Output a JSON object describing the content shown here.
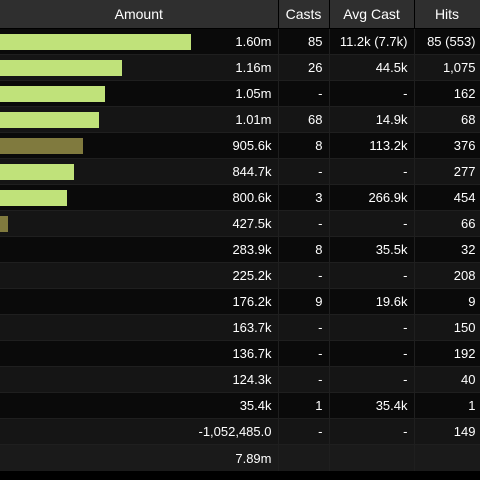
{
  "headers": {
    "amount": "Amount",
    "casts": "Casts",
    "avg_cast": "Avg Cast",
    "hits": "Hits"
  },
  "colors": {
    "bar_primary": "#c0e27a",
    "bar_secondary": "#807a3e"
  },
  "rows": [
    {
      "amount": "1.60m",
      "casts": "85",
      "avg_cast": "11.2k (7.7k)",
      "hits": "85 (553)",
      "bar_fraction": 0.69,
      "bar_color": "primary"
    },
    {
      "amount": "1.16m",
      "casts": "26",
      "avg_cast": "44.5k",
      "hits": "1,075",
      "bar_fraction": 0.44,
      "bar_color": "primary"
    },
    {
      "amount": "1.05m",
      "casts": "-",
      "avg_cast": "-",
      "hits": "162",
      "bar_fraction": 0.38,
      "bar_color": "primary"
    },
    {
      "amount": "1.01m",
      "casts": "68",
      "avg_cast": "14.9k",
      "hits": "68",
      "bar_fraction": 0.355,
      "bar_color": "primary"
    },
    {
      "amount": "905.6k",
      "casts": "8",
      "avg_cast": "113.2k",
      "hits": "376",
      "bar_fraction": 0.3,
      "bar_color": "secondary"
    },
    {
      "amount": "844.7k",
      "casts": "-",
      "avg_cast": "-",
      "hits": "277",
      "bar_fraction": 0.265,
      "bar_color": "primary"
    },
    {
      "amount": "800.6k",
      "casts": "3",
      "avg_cast": "266.9k",
      "hits": "454",
      "bar_fraction": 0.24,
      "bar_color": "primary"
    },
    {
      "amount": "427.5k",
      "casts": "-",
      "avg_cast": "-",
      "hits": "66",
      "bar_fraction": 0.03,
      "bar_color": "secondary"
    },
    {
      "amount": "283.9k",
      "casts": "8",
      "avg_cast": "35.5k",
      "hits": "32",
      "bar_fraction": 0,
      "bar_color": "primary"
    },
    {
      "amount": "225.2k",
      "casts": "-",
      "avg_cast": "-",
      "hits": "208",
      "bar_fraction": 0,
      "bar_color": "primary"
    },
    {
      "amount": "176.2k",
      "casts": "9",
      "avg_cast": "19.6k",
      "hits": "9",
      "bar_fraction": 0,
      "bar_color": "primary"
    },
    {
      "amount": "163.7k",
      "casts": "-",
      "avg_cast": "-",
      "hits": "150",
      "bar_fraction": 0,
      "bar_color": "primary"
    },
    {
      "amount": "136.7k",
      "casts": "-",
      "avg_cast": "-",
      "hits": "192",
      "bar_fraction": 0,
      "bar_color": "primary"
    },
    {
      "amount": "124.3k",
      "casts": "-",
      "avg_cast": "-",
      "hits": "40",
      "bar_fraction": 0,
      "bar_color": "primary"
    },
    {
      "amount": "35.4k",
      "casts": "1",
      "avg_cast": "35.4k",
      "hits": "1",
      "bar_fraction": 0,
      "bar_color": "primary"
    },
    {
      "amount": "-1,052,485.0",
      "casts": "-",
      "avg_cast": "-",
      "hits": "149",
      "bar_fraction": 0,
      "bar_color": "primary"
    }
  ],
  "total": {
    "amount": "7.89m"
  }
}
